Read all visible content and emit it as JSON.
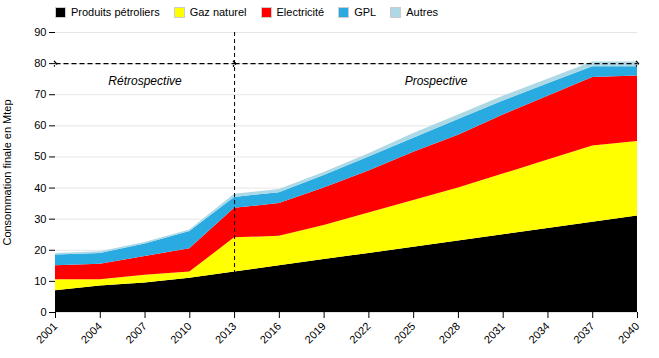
{
  "chart_data": {
    "type": "area",
    "stacked": true,
    "x": [
      2001,
      2004,
      2007,
      2010,
      2013,
      2016,
      2019,
      2022,
      2025,
      2028,
      2031,
      2034,
      2037,
      2040
    ],
    "series": [
      {
        "name": "Produits pétroliers",
        "color": "#000000",
        "values": [
          7.0,
          8.5,
          9.5,
          11.0,
          13.0,
          15.0,
          17.0,
          19.0,
          21.0,
          23.0,
          25.0,
          27.0,
          29.0,
          31.0
        ]
      },
      {
        "name": "Gaz naturel",
        "color": "#FFFF00",
        "values": [
          3.5,
          2.0,
          2.5,
          2.0,
          11.0,
          9.5,
          11.0,
          13.0,
          15.0,
          17.0,
          19.5,
          22.0,
          24.5,
          24.0
        ]
      },
      {
        "name": "Electricité",
        "color": "#FF0000",
        "values": [
          4.5,
          5.0,
          6.0,
          7.5,
          9.5,
          10.5,
          12.0,
          13.5,
          15.5,
          17.0,
          19.0,
          20.5,
          22.0,
          21.0
        ]
      },
      {
        "name": "GPL",
        "color": "#29ABE2",
        "values": [
          3.5,
          3.5,
          4.0,
          5.5,
          3.5,
          3.5,
          4.0,
          4.5,
          4.5,
          5.0,
          4.5,
          4.0,
          3.5,
          3.0
        ]
      },
      {
        "name": "Autres",
        "color": "#ADD8E6",
        "values": [
          0.5,
          0.5,
          0.5,
          0.5,
          1.0,
          1.0,
          1.0,
          1.0,
          1.5,
          1.5,
          1.5,
          1.5,
          1.5,
          1.5
        ]
      }
    ],
    "ylabel": "Consommation finale en Mtep",
    "xlim": [
      2001,
      2040
    ],
    "xticks": [
      2001,
      2004,
      2007,
      2010,
      2013,
      2016,
      2019,
      2022,
      2025,
      2028,
      2031,
      2034,
      2037,
      2040
    ],
    "ylim": [
      0,
      90
    ],
    "yticks": [
      0,
      10,
      20,
      30,
      40,
      50,
      60,
      70,
      80,
      90
    ],
    "grid": true,
    "legend": "top",
    "reference_lines": [
      {
        "axis": "x",
        "value": 2013
      }
    ],
    "arrows": [
      {
        "x1": 2001,
        "x2": 2013,
        "y": 80
      },
      {
        "x1": 2013,
        "x2": 2040,
        "y": 80
      }
    ],
    "annotations": [
      {
        "text": "Rétrospective",
        "x": 2007.0,
        "y": 73
      },
      {
        "text": "Prospective",
        "x": 2026.5,
        "y": 73
      }
    ]
  }
}
